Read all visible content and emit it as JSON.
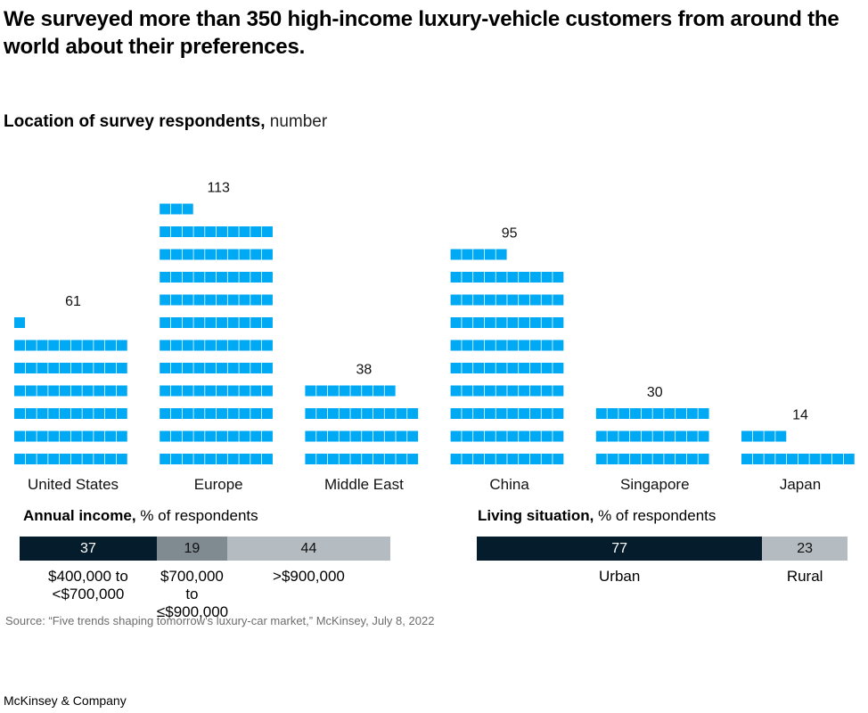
{
  "title": "We surveyed more than 350 high-income luxury-vehicle customers from around the world about their preferences.",
  "chart_data": [
    {
      "type": "bar",
      "style": "waffle",
      "title": "Location of survey respondents,",
      "unit": "number",
      "categories": [
        "United States",
        "Europe",
        "Middle East",
        "China",
        "Singapore",
        "Japan"
      ],
      "values": [
        61,
        113,
        38,
        95,
        30,
        14
      ],
      "color": "#00a9f4"
    },
    {
      "type": "bar",
      "style": "stacked-100",
      "title": "Annual income,",
      "unit": "% of respondents",
      "categories": [
        "$400,000 to <$700,000",
        "$700,000 to ≤$900,000",
        ">$900,000"
      ],
      "category_lines": [
        [
          "$400,000 to",
          "<$700,000"
        ],
        [
          "$700,000 to",
          "≤$900,000"
        ],
        [
          ">$900,000"
        ]
      ],
      "values": [
        37,
        19,
        44
      ],
      "colors": [
        "#051c2c",
        "#7f8a91",
        "#b5bcc1"
      ]
    },
    {
      "type": "bar",
      "style": "stacked-100",
      "title": "Living situation,",
      "unit": "% of respondents",
      "categories": [
        "Urban",
        "Rural"
      ],
      "values": [
        77,
        23
      ],
      "colors": [
        "#051c2c",
        "#b5bcc1"
      ]
    }
  ],
  "source": "Source: “Five trends shaping tomorrow’s luxury-car market,” McKinsey, July 8, 2022",
  "footer": "McKinsey & Company"
}
